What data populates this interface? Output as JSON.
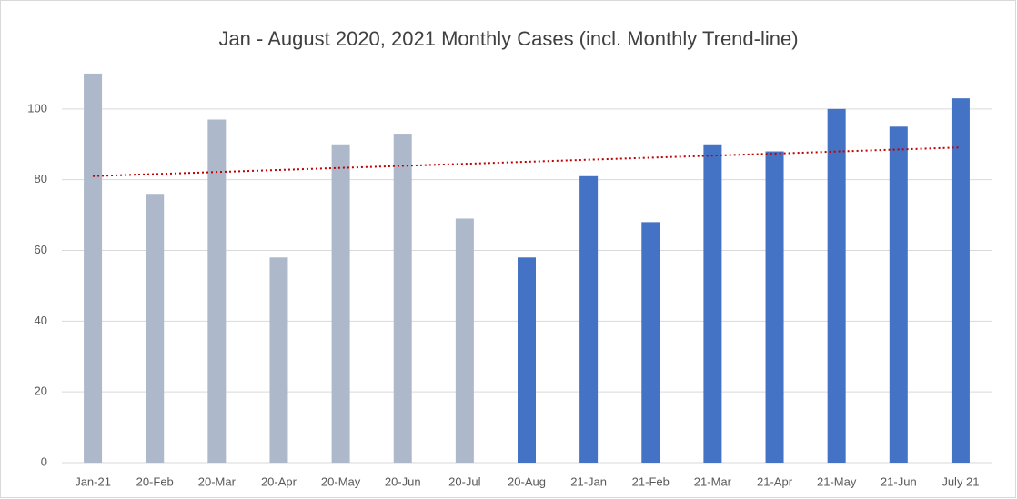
{
  "chart_data": {
    "type": "bar",
    "title": "Jan - August 2020, 2021 Monthly Cases (incl. Monthly Trend-line)",
    "categories": [
      "Jan-21",
      "20-Feb",
      "20-Mar",
      "20-Apr",
      "20-May",
      "20-Jun",
      "20-Jul",
      "20-Aug",
      "21-Jan",
      "21-Feb",
      "21-Mar",
      "21-Apr",
      "21-May",
      "21-Jun",
      "July 21"
    ],
    "values": [
      110,
      76,
      97,
      58,
      90,
      93,
      69,
      58,
      81,
      68,
      90,
      88,
      100,
      95,
      103
    ],
    "colors": [
      "#adb9ca",
      "#adb9ca",
      "#adb9ca",
      "#adb9ca",
      "#adb9ca",
      "#adb9ca",
      "#adb9ca",
      "#4472c4",
      "#4472c4",
      "#4472c4",
      "#4472c4",
      "#4472c4",
      "#4472c4",
      "#4472c4",
      "#4472c4"
    ],
    "ylim": [
      0,
      120
    ],
    "yticks": [
      0,
      20,
      40,
      60,
      80,
      100
    ],
    "grid": true,
    "trendline": "linear",
    "trendline_color": "#c00000"
  }
}
